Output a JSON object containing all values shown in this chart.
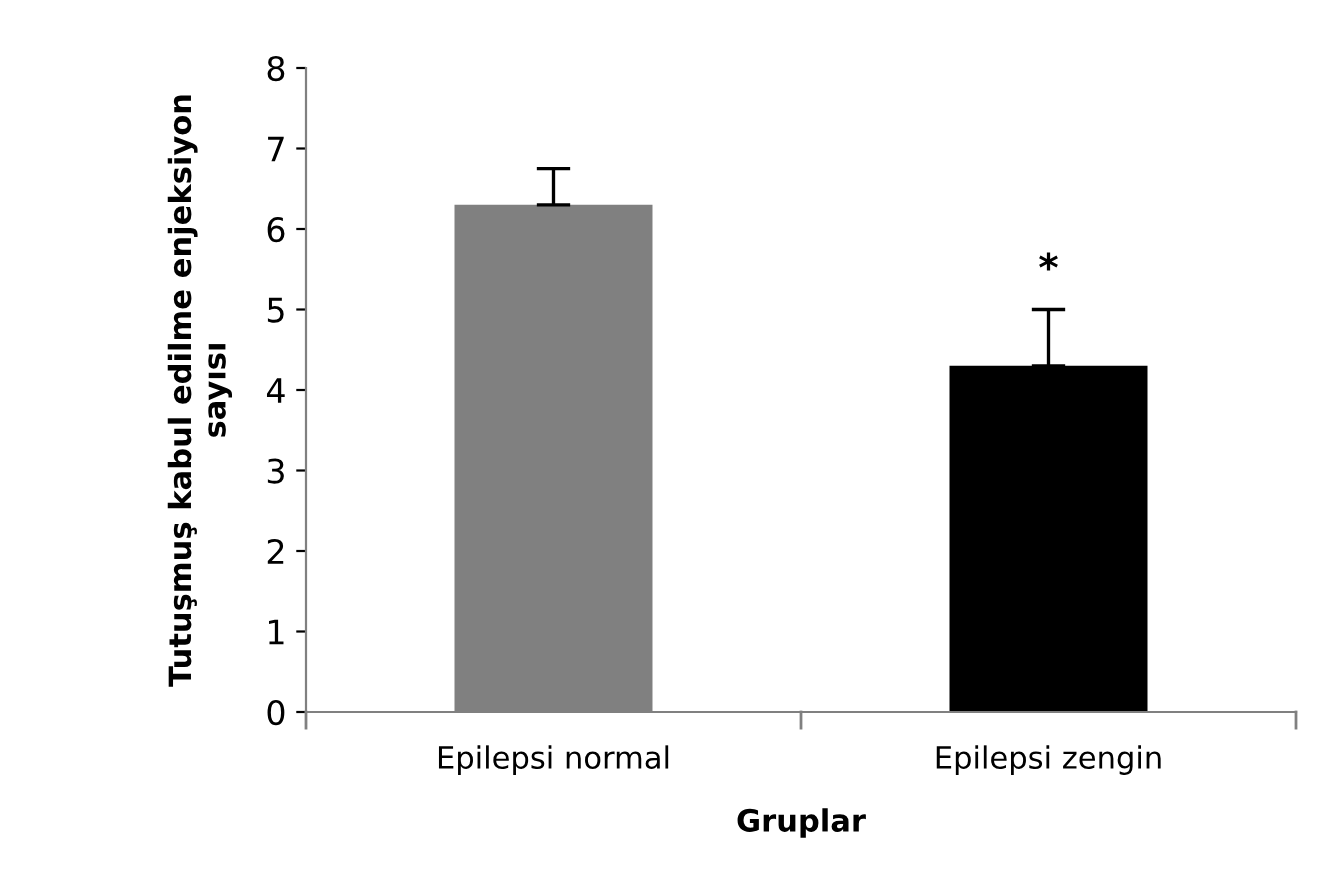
{
  "chart_data": {
    "type": "bar",
    "xlabel": "Gruplar",
    "ylabel": "Tutuşmuş kabul edilme enjeksiyon\nsayısı",
    "categories": [
      "Epilepsi normal",
      "Epilepsi zengin"
    ],
    "values": [
      6.3,
      4.3
    ],
    "colors": [
      "#808080",
      "#000000"
    ],
    "errors": [
      [
        6.3,
        6.75
      ],
      [
        4.3,
        5.0
      ]
    ],
    "annotations": [
      "*"
    ],
    "ylim": [
      0,
      8
    ],
    "yticks": [
      0,
      1,
      2,
      3,
      4,
      5,
      6,
      7,
      8
    ],
    "grid": false
  }
}
